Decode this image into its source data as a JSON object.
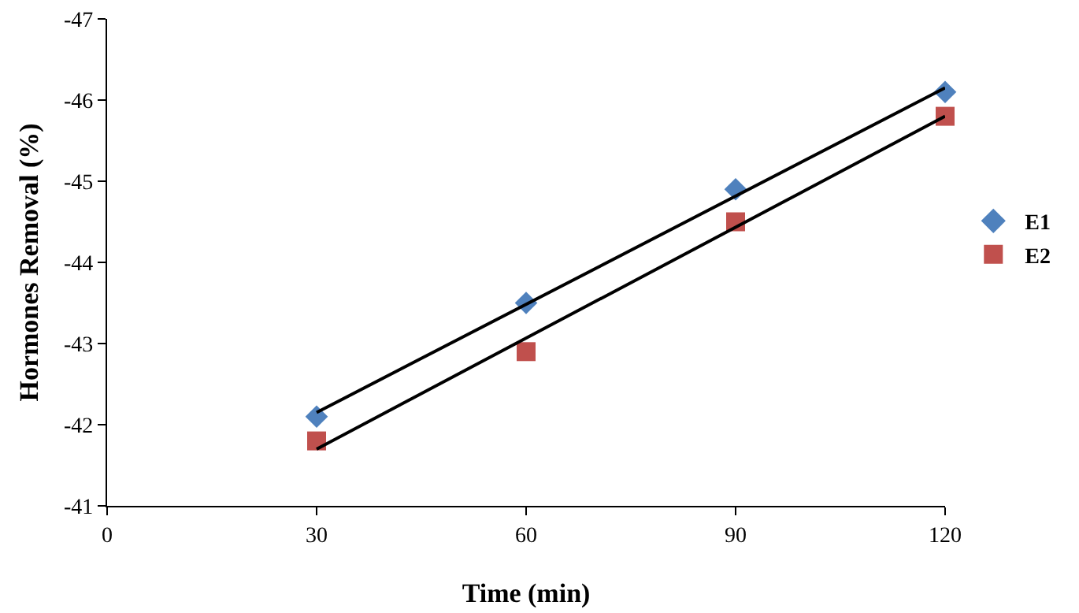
{
  "chart_data": {
    "type": "scatter",
    "xlabel": "Time (min)",
    "ylabel": "Hormones Removal (%)",
    "xlim": [
      0,
      120
    ],
    "xticks": [
      0,
      30,
      60,
      90,
      120
    ],
    "ylim": [
      -41,
      -47
    ],
    "yticks": [
      -41,
      -42,
      -43,
      -44,
      -45,
      -46,
      -47
    ],
    "grid": false,
    "legend": "right",
    "series": [
      {
        "name": "E1",
        "color": "#4f81bd",
        "marker": "diamond",
        "x": [
          30,
          60,
          90,
          120
        ],
        "values": [
          -42.1,
          -43.5,
          -44.9,
          -46.1
        ]
      },
      {
        "name": "E2",
        "color": "#c0504d",
        "marker": "square",
        "x": [
          30,
          60,
          90,
          120
        ],
        "values": [
          -41.8,
          -42.9,
          -44.5,
          -45.8
        ]
      },
      {
        "type": "line",
        "color": "#000000",
        "marker": "none",
        "x": [
          30,
          120
        ],
        "values": [
          -42.15,
          -46.15
        ]
      },
      {
        "type": "line",
        "color": "#000000",
        "marker": "none",
        "x": [
          30,
          120
        ],
        "values": [
          -41.7,
          -45.8
        ]
      }
    ]
  }
}
